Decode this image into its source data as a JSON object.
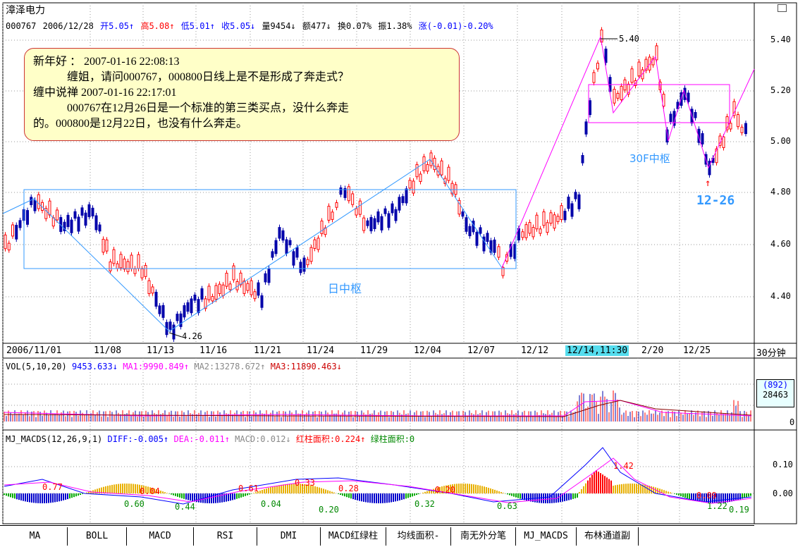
{
  "header": {
    "title": "漳泽电力",
    "code": "000767",
    "date": "2006/12/28",
    "open": "开5.05↑",
    "high": "高5.08↑",
    "low": "低5.01↑",
    "close": "收5.05↓",
    "vol": "量9454↓",
    "amt": "额477↓",
    "turnover": "换0.07%",
    "amp": "振1.38%",
    "chg": "涨(-0.01)-0.20%",
    "corner_icon": "restore-icon"
  },
  "note": {
    "line1": "新年好 ： 2007-01-16 22:08:13",
    "line2": "缠姐，请问000767，000800日线上是不是形成了奔走式？",
    "line3": "缠中说禅 2007-01-16 22:17:01",
    "line4": "000767在12月26日是一个标准的第三类买点，没什么奔走",
    "line5": "的。000800是12月22日，也没有什么奔走。"
  },
  "price_axis": [
    "5.40",
    "5.20",
    "5.00",
    "4.80",
    "4.60",
    "4.40"
  ],
  "annotations": {
    "high_label": "5.40",
    "low_label": "4.26",
    "day_zs": "日中枢",
    "min30_zs": "30F中枢",
    "buy_date": "12-26"
  },
  "dates": [
    "2006/11/01",
    "11/08",
    "11/13",
    "11/16",
    "11/21",
    "11/24",
    "11/29",
    "12/04",
    "12/07",
    "12/12",
    "12/14,11:30",
    "2/20",
    "12/25"
  ],
  "period": "30分钟",
  "vol": {
    "label": "VOL(5,10,20)",
    "v": "9453.633↓",
    "ma1": "MA1:9990.849↑",
    "ma2": "MA2:13278.672↑",
    "ma3": "MA3:11890.463↓",
    "axis_box1": "(892)",
    "axis_box2": "28463",
    "axis_zero": "0"
  },
  "macd": {
    "label": "MJ_MACDS(12,26,9,1)",
    "diff": "DIFF:-0.005↑",
    "dea": "DEA:-0.011↑",
    "macd": "MACD:0.012↓",
    "red_area": "红柱面积:0.224↑",
    "green_area": "绿柱面积:0",
    "axis1": "0.10",
    "axis2": "0.00",
    "bar_labels": [
      "0.77",
      "0.60",
      "0.04",
      "0.44",
      "0.61",
      "0.04",
      "0.33",
      "0.20",
      "0.28",
      "0.32",
      "0.20",
      "0.63",
      "1.42",
      "1.22",
      "0.09",
      "0.19"
    ]
  },
  "tabs": [
    "MA",
    "BOLL",
    "MACD",
    "RSI",
    "DMI",
    "MACD红绿柱",
    "均线面积-",
    "南无外分笔",
    "MJ_MACDS",
    "布林通道副"
  ],
  "colors": {
    "red": "#ff0000",
    "blue": "#0000ff",
    "magenta": "#ff00ff",
    "cyan": "#3399ff",
    "green": "#008000"
  }
}
